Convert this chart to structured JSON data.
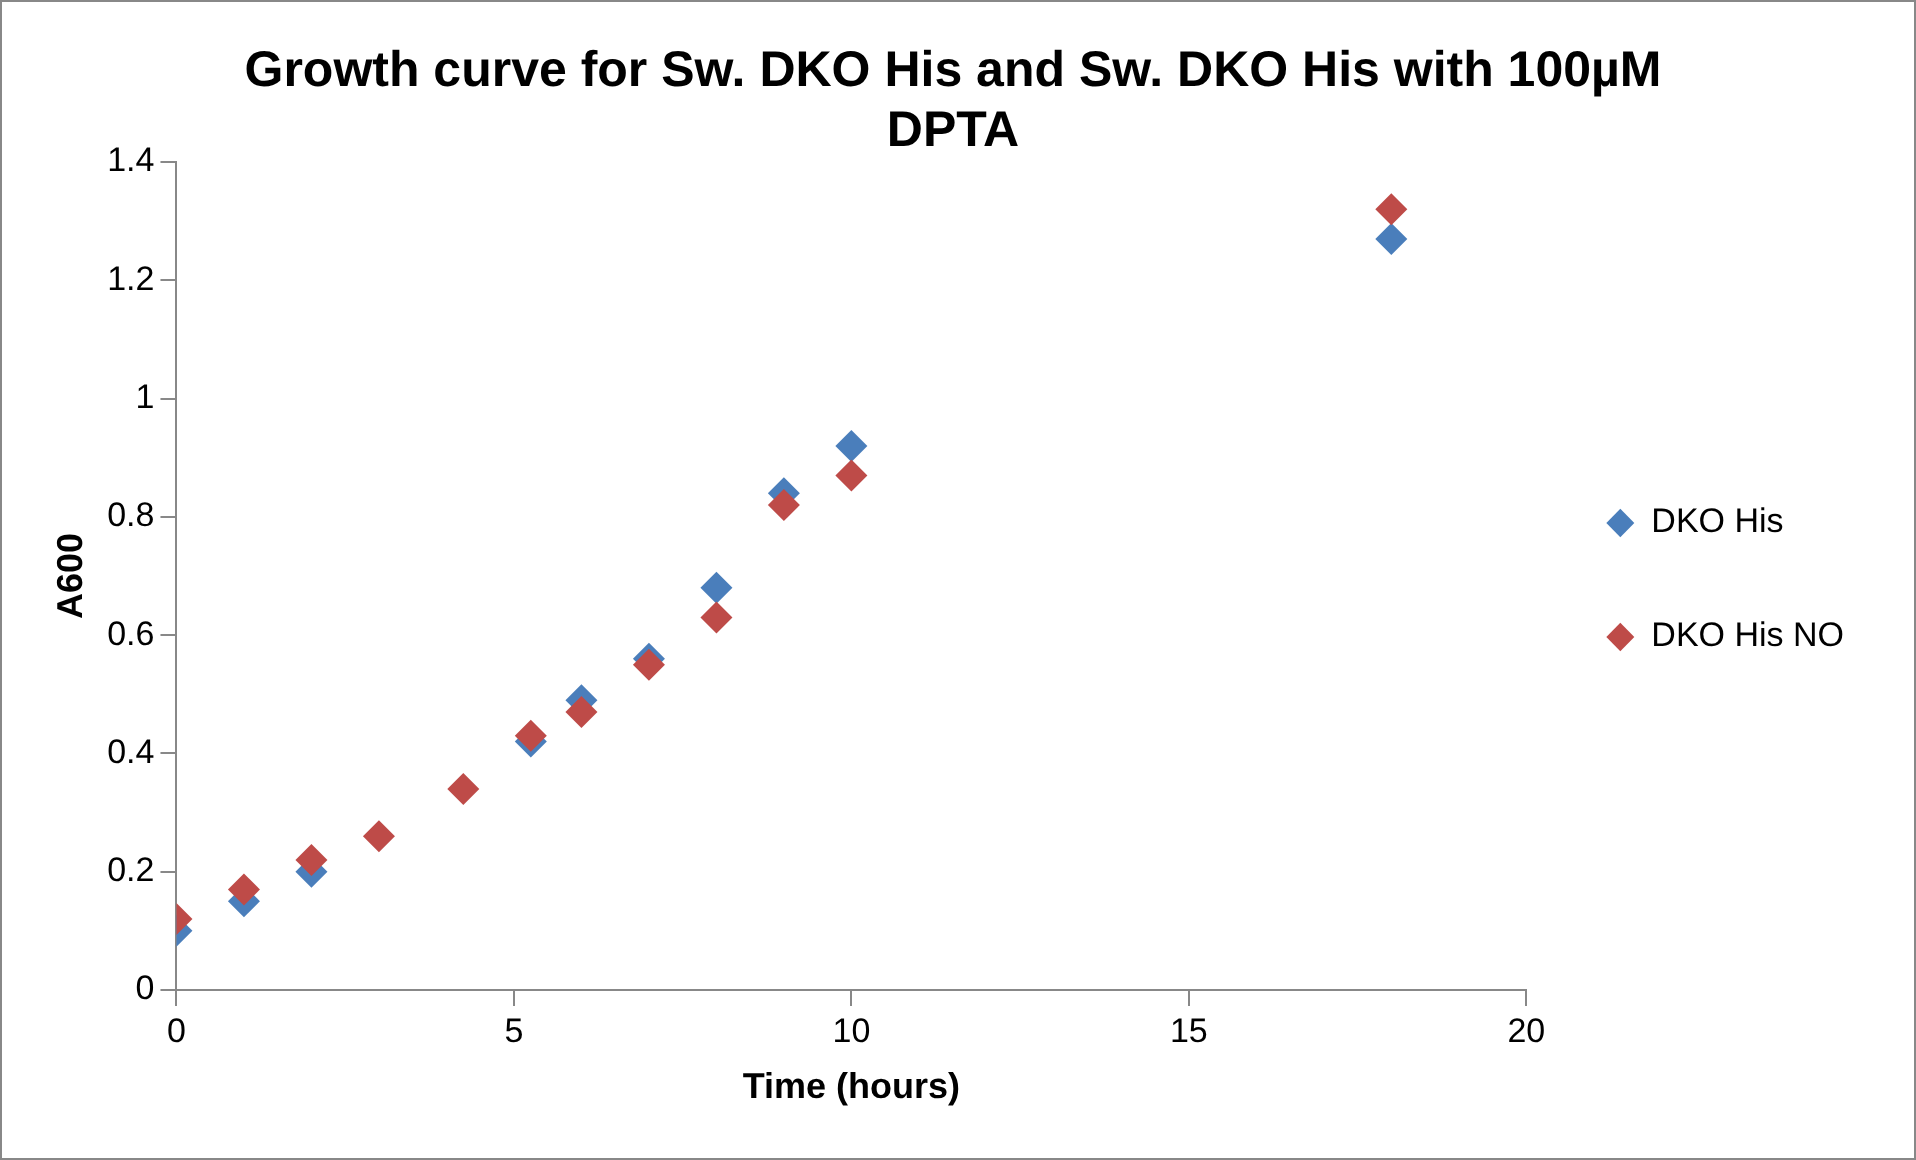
{
  "chart_data": {
    "type": "scatter",
    "title": "Growth curve for Sw. DKO His and Sw. DKO His with 100µM DPTA",
    "xlabel": "Time (hours)",
    "ylabel": "A600",
    "x": [
      0,
      1,
      2,
      3,
      4.25,
      5.25,
      6,
      7,
      8,
      9,
      10,
      18
    ],
    "series": [
      {
        "name": "DKO His",
        "color": "#4a7ebb",
        "values": [
          0.1,
          0.15,
          0.2,
          null,
          null,
          0.42,
          0.49,
          0.56,
          0.68,
          0.84,
          0.92,
          1.27
        ]
      },
      {
        "name": "DKO His NO",
        "color": "#be4b48",
        "values": [
          0.12,
          0.17,
          0.22,
          0.26,
          0.34,
          0.43,
          0.47,
          0.55,
          0.63,
          0.82,
          0.87,
          1.32
        ]
      }
    ],
    "xlim": [
      0,
      20
    ],
    "xticks": [
      0,
      5,
      10,
      15,
      20
    ],
    "ylim": [
      0,
      1.4
    ],
    "yticks": [
      0,
      0.2,
      0.4,
      0.6,
      0.8,
      1,
      1.2,
      1.4
    ],
    "grid": false,
    "legend": "right",
    "marker": "diamond"
  }
}
